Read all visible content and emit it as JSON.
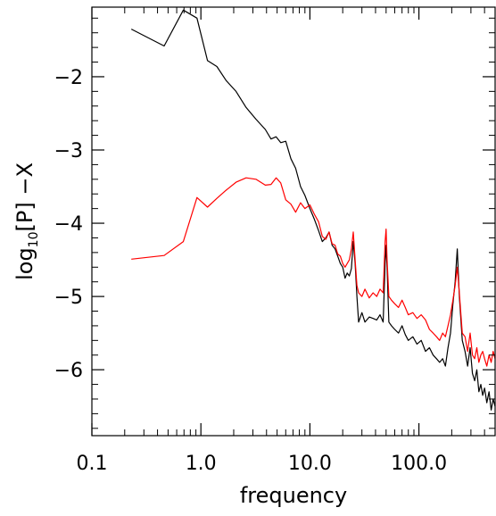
{
  "chart_data": {
    "type": "line",
    "xlabel": "frequency",
    "ylabel_parts": {
      "base": "log",
      "subscript": "10",
      "rest": "[P] −X"
    },
    "xscale": "log",
    "xlim": [
      0.1,
      500
    ],
    "ylim": [
      -6.9,
      -1.05
    ],
    "x_ticks": [
      {
        "value": 0.1,
        "label": "0.1"
      },
      {
        "value": 1,
        "label": "1.0"
      },
      {
        "value": 10,
        "label": "10.0"
      },
      {
        "value": 100,
        "label": "100.0"
      }
    ],
    "y_ticks": [
      {
        "value": -2,
        "label": "−2"
      },
      {
        "value": -3,
        "label": "−3"
      },
      {
        "value": -4,
        "label": "−4"
      },
      {
        "value": -5,
        "label": "−5"
      },
      {
        "value": -6,
        "label": "−6"
      }
    ],
    "grid": false,
    "series": [
      {
        "color": "#000000",
        "points": [
          [
            0.23,
            -1.35
          ],
          [
            0.46,
            -1.58
          ],
          [
            0.69,
            -1.09
          ],
          [
            0.92,
            -1.2
          ],
          [
            1.15,
            -1.78
          ],
          [
            1.4,
            -1.86
          ],
          [
            1.7,
            -2.05
          ],
          [
            2.1,
            -2.2
          ],
          [
            2.6,
            -2.42
          ],
          [
            3.2,
            -2.58
          ],
          [
            3.9,
            -2.72
          ],
          [
            4.4,
            -2.85
          ],
          [
            4.9,
            -2.82
          ],
          [
            5.4,
            -2.9
          ],
          [
            6.0,
            -2.88
          ],
          [
            6.7,
            -3.12
          ],
          [
            7.4,
            -3.25
          ],
          [
            8.2,
            -3.5
          ],
          [
            9.0,
            -3.62
          ],
          [
            10.0,
            -3.8
          ],
          [
            11.0,
            -3.95
          ],
          [
            12.0,
            -4.1
          ],
          [
            13.0,
            -4.25
          ],
          [
            14.0,
            -4.2
          ],
          [
            15.0,
            -4.12
          ],
          [
            16.0,
            -4.3
          ],
          [
            17.0,
            -4.35
          ],
          [
            18.0,
            -4.45
          ],
          [
            19.0,
            -4.55
          ],
          [
            20.0,
            -4.6
          ],
          [
            21.0,
            -4.75
          ],
          [
            22.0,
            -4.68
          ],
          [
            23.0,
            -4.72
          ],
          [
            24.0,
            -4.62
          ],
          [
            25.0,
            -4.25
          ],
          [
            26.0,
            -4.55
          ],
          [
            27.0,
            -5.0
          ],
          [
            28.0,
            -5.35
          ],
          [
            30.0,
            -5.22
          ],
          [
            32.0,
            -5.35
          ],
          [
            35.0,
            -5.28
          ],
          [
            38.0,
            -5.3
          ],
          [
            41.0,
            -5.32
          ],
          [
            44.0,
            -5.25
          ],
          [
            47.0,
            -5.35
          ],
          [
            49.0,
            -4.55
          ],
          [
            50.0,
            -4.3
          ],
          [
            51.0,
            -4.6
          ],
          [
            53.0,
            -5.35
          ],
          [
            56.0,
            -5.4
          ],
          [
            60.0,
            -5.45
          ],
          [
            65.0,
            -5.5
          ],
          [
            70.0,
            -5.4
          ],
          [
            75.0,
            -5.52
          ],
          [
            80.0,
            -5.6
          ],
          [
            88.0,
            -5.55
          ],
          [
            96.0,
            -5.65
          ],
          [
            105.0,
            -5.6
          ],
          [
            115.0,
            -5.75
          ],
          [
            125.0,
            -5.7
          ],
          [
            135.0,
            -5.8
          ],
          [
            145.0,
            -5.85
          ],
          [
            155.0,
            -5.9
          ],
          [
            165.0,
            -5.85
          ],
          [
            175.0,
            -5.95
          ],
          [
            185.0,
            -5.7
          ],
          [
            195.0,
            -5.5
          ],
          [
            205.0,
            -5.1
          ],
          [
            215.0,
            -4.8
          ],
          [
            225.0,
            -4.35
          ],
          [
            235.0,
            -5.0
          ],
          [
            250.0,
            -5.6
          ],
          [
            265.0,
            -5.75
          ],
          [
            280.0,
            -5.95
          ],
          [
            295.0,
            -5.7
          ],
          [
            310.0,
            -6.05
          ],
          [
            325.0,
            -6.15
          ],
          [
            340.0,
            -6.0
          ],
          [
            355.0,
            -6.3
          ],
          [
            370.0,
            -6.2
          ],
          [
            385.0,
            -6.35
          ],
          [
            400.0,
            -6.25
          ],
          [
            420.0,
            -6.45
          ],
          [
            440.0,
            -6.3
          ],
          [
            460.0,
            -6.55
          ],
          [
            480.0,
            -6.4
          ],
          [
            500.0,
            -6.5
          ]
        ]
      },
      {
        "color": "#ff0000",
        "points": [
          [
            0.23,
            -4.49
          ],
          [
            0.46,
            -4.44
          ],
          [
            0.69,
            -4.25
          ],
          [
            0.92,
            -3.65
          ],
          [
            1.15,
            -3.78
          ],
          [
            1.4,
            -3.66
          ],
          [
            1.7,
            -3.55
          ],
          [
            2.1,
            -3.44
          ],
          [
            2.6,
            -3.38
          ],
          [
            3.2,
            -3.4
          ],
          [
            3.9,
            -3.48
          ],
          [
            4.4,
            -3.47
          ],
          [
            4.9,
            -3.38
          ],
          [
            5.4,
            -3.45
          ],
          [
            6.0,
            -3.68
          ],
          [
            6.7,
            -3.74
          ],
          [
            7.4,
            -3.85
          ],
          [
            8.2,
            -3.72
          ],
          [
            9.0,
            -3.8
          ],
          [
            10.0,
            -3.75
          ],
          [
            11.0,
            -3.88
          ],
          [
            12.0,
            -3.98
          ],
          [
            13.0,
            -4.18
          ],
          [
            14.0,
            -4.22
          ],
          [
            15.0,
            -4.12
          ],
          [
            16.0,
            -4.28
          ],
          [
            17.0,
            -4.3
          ],
          [
            18.0,
            -4.42
          ],
          [
            19.0,
            -4.45
          ],
          [
            20.0,
            -4.55
          ],
          [
            21.0,
            -4.6
          ],
          [
            22.0,
            -4.55
          ],
          [
            23.0,
            -4.5
          ],
          [
            24.0,
            -4.35
          ],
          [
            25.0,
            -4.12
          ],
          [
            26.0,
            -4.5
          ],
          [
            27.0,
            -4.85
          ],
          [
            28.0,
            -4.95
          ],
          [
            30.0,
            -5.0
          ],
          [
            32.0,
            -4.9
          ],
          [
            35.0,
            -5.02
          ],
          [
            38.0,
            -4.95
          ],
          [
            41.0,
            -5.0
          ],
          [
            44.0,
            -4.9
          ],
          [
            47.0,
            -4.95
          ],
          [
            49.0,
            -4.25
          ],
          [
            50.0,
            -4.08
          ],
          [
            51.0,
            -4.5
          ],
          [
            53.0,
            -5.0
          ],
          [
            56.0,
            -5.05
          ],
          [
            60.0,
            -5.1
          ],
          [
            65.0,
            -5.15
          ],
          [
            70.0,
            -5.05
          ],
          [
            75.0,
            -5.15
          ],
          [
            80.0,
            -5.25
          ],
          [
            88.0,
            -5.22
          ],
          [
            96.0,
            -5.3
          ],
          [
            105.0,
            -5.25
          ],
          [
            115.0,
            -5.32
          ],
          [
            125.0,
            -5.45
          ],
          [
            135.0,
            -5.5
          ],
          [
            145.0,
            -5.55
          ],
          [
            155.0,
            -5.6
          ],
          [
            165.0,
            -5.5
          ],
          [
            175.0,
            -5.55
          ],
          [
            185.0,
            -5.4
          ],
          [
            195.0,
            -5.25
          ],
          [
            205.0,
            -5.05
          ],
          [
            215.0,
            -4.85
          ],
          [
            225.0,
            -4.6
          ],
          [
            235.0,
            -4.95
          ],
          [
            250.0,
            -5.5
          ],
          [
            265.0,
            -5.55
          ],
          [
            280.0,
            -5.75
          ],
          [
            295.0,
            -5.5
          ],
          [
            310.0,
            -5.8
          ],
          [
            325.0,
            -5.85
          ],
          [
            340.0,
            -5.7
          ],
          [
            355.0,
            -5.9
          ],
          [
            370.0,
            -5.8
          ],
          [
            385.0,
            -5.75
          ],
          [
            400.0,
            -5.85
          ],
          [
            420.0,
            -5.95
          ],
          [
            440.0,
            -5.8
          ],
          [
            460.0,
            -5.9
          ],
          [
            480.0,
            -5.75
          ],
          [
            500.0,
            -5.85
          ]
        ]
      }
    ]
  }
}
